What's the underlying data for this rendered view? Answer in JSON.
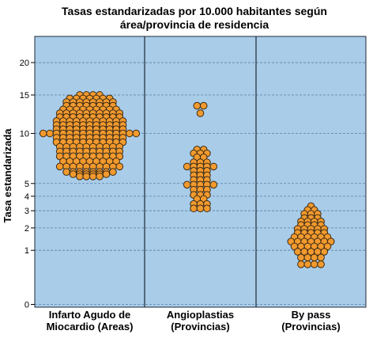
{
  "chart_data": {
    "type": "scatter",
    "title": "Tasas estandarizadas por 10.000 habitantes según área/provincia de residencia",
    "title_lines": [
      "Tasas estandarizadas por 10.000 habitantes según",
      "área/provincia de residencia"
    ],
    "ylabel": "Tasa estandarizada",
    "y_scale": "sqrt",
    "ylim": [
      0,
      22
    ],
    "y_ticks": [
      0,
      1,
      2,
      3,
      4,
      5,
      10,
      15,
      20
    ],
    "grid": true,
    "colors": {
      "plot_background": "#a9cce9",
      "marker_fill": "#f29a2e",
      "marker_edge": "#3b2a14",
      "gridline": "#5a7fa0",
      "divider": "#1f2a36"
    },
    "categories": [
      {
        "label_lines": [
          "Infarto Agudo de",
          "Miocardio (Areas)"
        ],
        "bins": [
          {
            "y": 15.0,
            "n": 4
          },
          {
            "y": 14.5,
            "n": 7
          },
          {
            "y": 14.0,
            "n": 8
          },
          {
            "y": 13.5,
            "n": 8
          },
          {
            "y": 13.0,
            "n": 9
          },
          {
            "y": 12.5,
            "n": 10
          },
          {
            "y": 12.0,
            "n": 10
          },
          {
            "y": 11.5,
            "n": 11
          },
          {
            "y": 11.0,
            "n": 11
          },
          {
            "y": 10.5,
            "n": 11
          },
          {
            "y": 10.0,
            "n": 15
          },
          {
            "y": 9.5,
            "n": 11
          },
          {
            "y": 9.0,
            "n": 11
          },
          {
            "y": 8.5,
            "n": 10
          },
          {
            "y": 8.0,
            "n": 10
          },
          {
            "y": 7.5,
            "n": 10
          },
          {
            "y": 7.0,
            "n": 9
          },
          {
            "y": 6.5,
            "n": 10
          },
          {
            "y": 6.0,
            "n": 8
          },
          {
            "y": 5.8,
            "n": 6
          },
          {
            "y": 5.6,
            "n": 4
          }
        ]
      },
      {
        "label_lines": [
          "Angioplastias",
          "(Provincias)"
        ],
        "bins": [
          {
            "y": 13.5,
            "n": 2
          },
          {
            "y": 12.5,
            "n": 1
          },
          {
            "y": 8.2,
            "n": 2
          },
          {
            "y": 7.8,
            "n": 3
          },
          {
            "y": 7.4,
            "n": 2
          },
          {
            "y": 6.9,
            "n": 3
          },
          {
            "y": 6.5,
            "n": 5
          },
          {
            "y": 6.1,
            "n": 3
          },
          {
            "y": 5.7,
            "n": 3
          },
          {
            "y": 5.3,
            "n": 3
          },
          {
            "y": 4.9,
            "n": 5
          },
          {
            "y": 4.5,
            "n": 3
          },
          {
            "y": 4.1,
            "n": 3
          },
          {
            "y": 3.8,
            "n": 2
          },
          {
            "y": 3.45,
            "n": 3
          },
          {
            "y": 3.15,
            "n": 3
          }
        ]
      },
      {
        "label_lines": [
          "By pass",
          "(Provincias)"
        ],
        "bins": [
          {
            "y": 3.3,
            "n": 1
          },
          {
            "y": 3.05,
            "n": 2
          },
          {
            "y": 2.8,
            "n": 3
          },
          {
            "y": 2.55,
            "n": 3
          },
          {
            "y": 2.35,
            "n": 4
          },
          {
            "y": 2.15,
            "n": 4
          },
          {
            "y": 1.95,
            "n": 5
          },
          {
            "y": 1.75,
            "n": 5
          },
          {
            "y": 1.55,
            "n": 6
          },
          {
            "y": 1.35,
            "n": 7
          },
          {
            "y": 1.15,
            "n": 6
          },
          {
            "y": 0.95,
            "n": 5
          },
          {
            "y": 0.75,
            "n": 4
          },
          {
            "y": 0.55,
            "n": 4
          }
        ]
      }
    ]
  }
}
